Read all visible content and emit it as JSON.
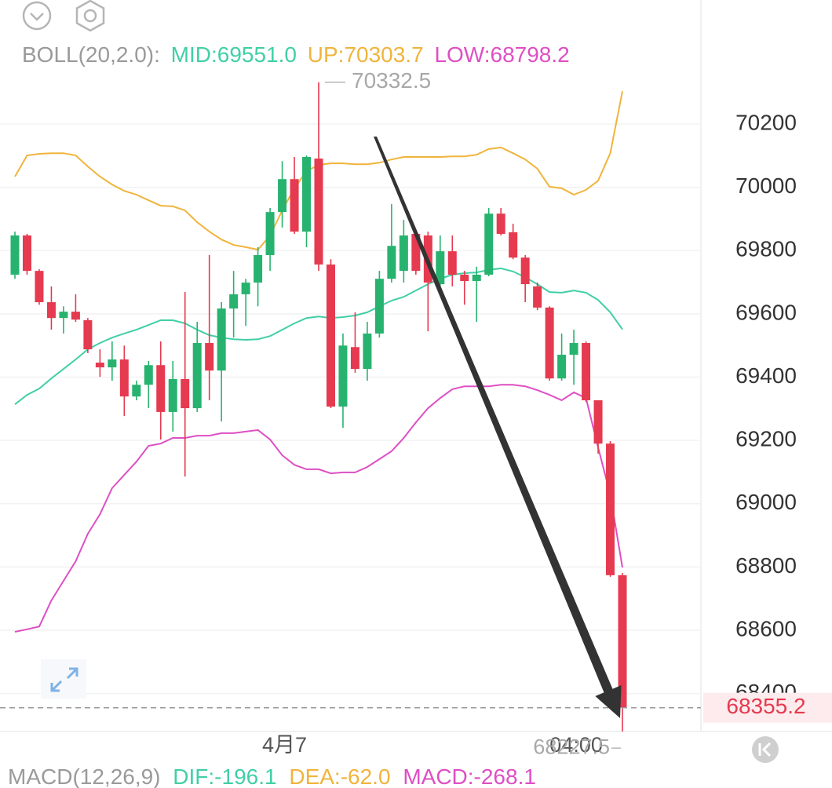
{
  "header": {
    "boll": "BOLL(20,2.0):",
    "mid": "MID:69551.0",
    "up": "UP:70303.7",
    "low": "LOW:68798.2"
  },
  "chart_data": {
    "type": "candlestick",
    "categories": [
      null,
      null,
      null,
      null,
      null,
      null,
      null,
      null,
      null,
      null,
      null,
      null,
      null,
      null,
      null,
      null,
      null,
      null,
      null,
      null,
      null,
      null,
      "4月7",
      null,
      null,
      null,
      null,
      null,
      null,
      null,
      null,
      null,
      null,
      null,
      null,
      null,
      null,
      null,
      null,
      null,
      null,
      null,
      null,
      null,
      null,
      null,
      "04:00",
      null,
      null,
      null,
      null
    ],
    "open": [
      69724,
      69848,
      69736,
      69637,
      69587,
      69607,
      69580,
      69446,
      69431,
      69456,
      69339,
      69376,
      69438,
      69290,
      69394,
      69302,
      69508,
      69421,
      69617,
      69662,
      69699,
      69786,
      69922,
      70026,
      69860,
      70091,
      69756,
      69307,
      69495,
      69426,
      69538,
      69711,
      69736,
      69853,
      69848,
      69694,
      69798,
      69724,
      69704,
      69724,
      69917,
      69858,
      69778,
      69687,
      69620,
      69396,
      69471,
      69508,
      69327,
      69190,
      68774
    ],
    "high": [
      69860,
      69853,
      69741,
      69687,
      69624,
      69662,
      69587,
      69488,
      69513,
      69500,
      69389,
      69451,
      69513,
      69451,
      69669,
      69575,
      69786,
      69637,
      69736,
      69711,
      69811,
      69935,
      70083,
      70096,
      70101,
      70332.5,
      69773,
      69538,
      69605,
      69575,
      69736,
      69947,
      69897,
      69860,
      69860,
      69848,
      69848,
      69736,
      69749,
      69935,
      69935,
      69885,
      69786,
      69699,
      69624,
      69538,
      69550,
      69513,
      69327,
      69198,
      68781
    ],
    "low": [
      69711,
      69724,
      69629,
      69550,
      69538,
      69575,
      69476,
      69401,
      69389,
      69277,
      69327,
      69302,
      69203,
      69228,
      69086,
      69290,
      69327,
      69260,
      69525,
      69562,
      69624,
      69736,
      69873,
      69853,
      69811,
      69736,
      69302,
      69240,
      69414,
      69389,
      69525,
      69699,
      69699,
      69724,
      69545,
      69687,
      69687,
      69629,
      69575,
      69719,
      69848,
      69773,
      69637,
      69612,
      69389,
      69389,
      69376,
      69322,
      69158,
      68769,
      68227.5
    ],
    "close": [
      69848,
      69736,
      69637,
      69587,
      69607,
      69582,
      69488,
      69431,
      69456,
      69339,
      69376,
      69438,
      69290,
      69394,
      69302,
      69508,
      69421,
      69617,
      69662,
      69699,
      69786,
      69922,
      70026,
      69860,
      70096,
      69756,
      69307,
      69500,
      69426,
      69538,
      69711,
      69815,
      69848,
      69736,
      69699,
      69798,
      69724,
      69704,
      69724,
      69917,
      69853,
      69778,
      69694,
      69620,
      69396,
      69471,
      69508,
      69327,
      69190,
      68774,
      68355.2
    ],
    "up_color": "#27b36f",
    "down_color": "#e53a4f",
    "lines": [
      {
        "color": "#f0b43c",
        "values": [
          70034,
          70101,
          70106,
          70108,
          70108,
          70101,
          70066,
          70034,
          70009,
          69989,
          69977,
          69959,
          69942,
          69940,
          69927,
          69890,
          69860,
          69835,
          69818,
          69811,
          69803,
          69848,
          69927,
          69997,
          70051,
          70071,
          70076,
          70076,
          70073,
          70073,
          70078,
          70088,
          70096,
          70096,
          70096,
          70096,
          70098,
          70098,
          70103,
          70121,
          70126,
          70108,
          70088,
          70059,
          70002,
          69997,
          69977,
          69992,
          70021,
          70108,
          70303.7
        ]
      },
      {
        "color": "#41cfa6",
        "values": [
          69314,
          69344,
          69364,
          69396,
          69426,
          69456,
          69488,
          69508,
          69525,
          69538,
          69550,
          69565,
          69580,
          69580,
          69570,
          69550,
          69533,
          69525,
          69520,
          69518,
          69520,
          69530,
          69550,
          69570,
          69587,
          69592,
          69587,
          69590,
          69595,
          69605,
          69624,
          69642,
          69654,
          69674,
          69694,
          69711,
          69724,
          69729,
          69731,
          69739,
          69744,
          69734,
          69716,
          69694,
          69669,
          69667,
          69674,
          69667,
          69644,
          69605,
          69551.0
        ]
      },
      {
        "color": "#de4fc4",
        "values": [
          68595,
          68603,
          68612,
          68694,
          68756,
          68818,
          68905,
          68967,
          69049,
          69091,
          69133,
          69183,
          69190,
          69208,
          69208,
          69215,
          69215,
          69223,
          69223,
          69228,
          69233,
          69203,
          69153,
          69123,
          69109,
          69109,
          69096,
          69099,
          69099,
          69116,
          69141,
          69166,
          69208,
          69257,
          69302,
          69334,
          69362,
          69371,
          69371,
          69371,
          69376,
          69376,
          69371,
          69359,
          69344,
          69327,
          69352,
          69334,
          69178,
          69029,
          68798.2
        ]
      }
    ],
    "ylim": [
      68280,
      70364
    ],
    "yticks": [
      68400,
      68600,
      68800,
      69000,
      69200,
      69400,
      69600,
      69800,
      70000,
      70200
    ],
    "grid": true,
    "annotations": {
      "high": "70332.5",
      "low": "68227.5",
      "last": "68355.2"
    }
  },
  "footer": {
    "macd": "MACD(12,26,9)",
    "dif": "DIF:-196.1",
    "dea": "DEA:-62.0",
    "macd_value": "MACD:-268.1"
  }
}
